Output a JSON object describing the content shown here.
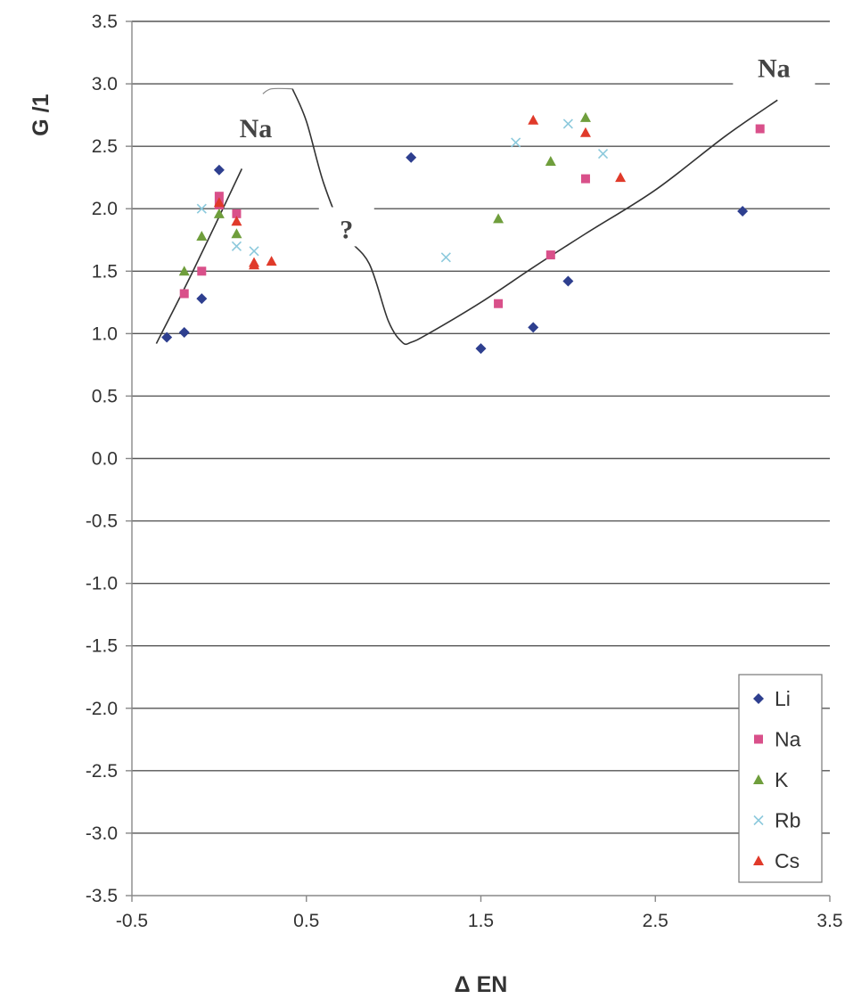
{
  "chart_data": {
    "type": "scatter",
    "xlabel": "Δ EN",
    "ylabel": "G /1",
    "xlim": [
      -0.5,
      3.5
    ],
    "ylim": [
      -3.5,
      3.5
    ],
    "x_ticks": [
      "-0.5",
      "0.5",
      "1.5",
      "2.5",
      "3.5"
    ],
    "x_tick_values": [
      -0.5,
      0.5,
      1.5,
      2.5,
      3.5
    ],
    "y_ticks": [
      "3.5",
      "3.0",
      "2.5",
      "2.0",
      "1.5",
      "1.0",
      "0.5",
      "0.0",
      "-0.5",
      "-1.0",
      "-1.5",
      "-2.0",
      "-2.5",
      "-3.0",
      "-3.5"
    ],
    "y_tick_values": [
      3.5,
      3.0,
      2.5,
      2.0,
      1.5,
      1.0,
      0.5,
      0.0,
      -0.5,
      -1.0,
      -1.5,
      -2.0,
      -2.5,
      -3.0,
      -3.5
    ],
    "grid": "horizontal",
    "legend_position": "bottom-right",
    "series": [
      {
        "name": "Li",
        "marker": "diamond",
        "color": "#2e3f8f",
        "points": [
          [
            -0.3,
            0.97
          ],
          [
            -0.2,
            1.01
          ],
          [
            -0.1,
            1.28
          ],
          [
            0.0,
            2.31
          ],
          [
            1.1,
            2.41
          ],
          [
            1.5,
            0.88
          ],
          [
            1.8,
            1.05
          ],
          [
            2.0,
            1.42
          ],
          [
            3.0,
            1.98
          ]
        ]
      },
      {
        "name": "Na",
        "marker": "square",
        "color": "#d9508a",
        "points": [
          [
            -0.2,
            1.32
          ],
          [
            -0.1,
            1.5
          ],
          [
            0.0,
            2.1
          ],
          [
            0.0,
            2.03
          ],
          [
            0.1,
            1.96
          ],
          [
            1.6,
            1.24
          ],
          [
            1.9,
            1.63
          ],
          [
            2.1,
            2.24
          ],
          [
            3.1,
            2.64
          ]
        ]
      },
      {
        "name": "K",
        "marker": "triangle",
        "color": "#6f9e3c",
        "points": [
          [
            -0.2,
            1.5
          ],
          [
            -0.1,
            1.78
          ],
          [
            0.0,
            1.96
          ],
          [
            0.1,
            1.8
          ],
          [
            1.6,
            1.92
          ],
          [
            1.9,
            2.38
          ],
          [
            2.1,
            2.73
          ]
        ]
      },
      {
        "name": "Rb",
        "marker": "x",
        "color": "#8cc9dc",
        "points": [
          [
            -0.1,
            2.0
          ],
          [
            0.1,
            1.7
          ],
          [
            0.2,
            1.66
          ],
          [
            1.3,
            1.61
          ],
          [
            1.7,
            2.53
          ],
          [
            2.0,
            2.68
          ],
          [
            2.2,
            2.44
          ]
        ]
      },
      {
        "name": "Cs",
        "marker": "triangle",
        "color": "#e03a2a",
        "points": [
          [
            0.0,
            2.05
          ],
          [
            0.1,
            1.9
          ],
          [
            0.2,
            1.57
          ],
          [
            0.2,
            1.55
          ],
          [
            0.3,
            1.58
          ],
          [
            1.8,
            2.71
          ],
          [
            2.1,
            2.61
          ],
          [
            2.3,
            2.25
          ]
        ]
      }
    ],
    "annotation_lines": [
      {
        "points": [
          [
            -0.36,
            0.92
          ],
          [
            -0.15,
            1.5
          ],
          [
            0.13,
            2.32
          ]
        ]
      },
      {
        "points": [
          [
            0.42,
            2.96
          ],
          [
            0.5,
            2.7
          ],
          [
            0.6,
            2.2
          ],
          [
            0.72,
            1.8
          ],
          [
            0.86,
            1.56
          ],
          [
            0.97,
            1.1
          ],
          [
            1.05,
            0.93
          ],
          [
            1.1,
            0.93
          ],
          [
            1.2,
            1.0
          ],
          [
            1.5,
            1.25
          ],
          [
            1.8,
            1.53
          ],
          [
            2.1,
            1.8
          ],
          [
            2.5,
            2.15
          ],
          [
            2.9,
            2.58
          ],
          [
            3.2,
            2.87
          ]
        ]
      },
      {
        "points": [
          [
            0.25,
            2.92
          ],
          [
            0.3,
            2.96
          ],
          [
            0.42,
            2.96
          ]
        ]
      }
    ],
    "annotations": [
      {
        "text": "Na",
        "x": 0.21,
        "y": 2.63
      },
      {
        "text": "?",
        "x": 0.73,
        "y": 1.82
      },
      {
        "text": "Na",
        "x": 3.18,
        "y": 3.11
      }
    ]
  }
}
